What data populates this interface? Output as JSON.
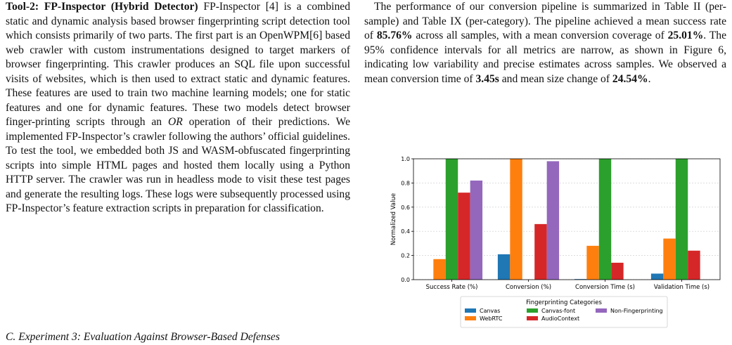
{
  "left": {
    "tool_heading": "Tool-2: FP-Inspector (Hybrid Detector)",
    "p1_a": " FP-Inspector [4] is a combined static and dynamic analysis based browser fingerprinting script detection tool which consists primarily of two parts. The first part is an OpenWPM[6] based web crawler with custom instrumentations designed to target markers of browser fingerprinting. This crawler produces an SQL file upon successful visits of websites, which is then used to extract static and dynamic features. These features are used to train two machine learning models; one for static features and one for dynamic features. These two models detect browser finger-printing scripts through an ",
    "p1_or": "OR",
    "p1_b": " operation of their predictions. We implemented FP-Inspector’s crawler following the authors’ official guidelines. To test the tool, we embedded both JS and WASM-obfuscated fingerprinting scripts into simple HTML pages and hosted them locally using a Python HTTP server. The crawler was run in headless mode to visit these test pages and generate the resulting logs. These logs were subsequently processed using FP-Inspector’s feature extraction scripts in preparation for classification.",
    "subsection": "C.  Experiment 3: Evaluation Against Browser-Based Defenses"
  },
  "right": {
    "t1": "The performance of our conversion pipeline is summarized in Table II (per-sample) and  Table IX (per-category). The pipeline achieved a mean success rate of ",
    "b1": "85.76%",
    "t2": " across all samples, with a mean conversion coverage of ",
    "b2": "25.01%",
    "t3": ". The 95% confidence intervals for all metrics are narrow, as shown in Figure 6, indicating low variability and precise estimates across samples. We observed a mean conversion time of ",
    "b3": "3.45s",
    "t4": " and mean size change of ",
    "b4": "24.54%",
    "t5": "."
  },
  "chart_data": {
    "type": "bar",
    "ylabel": "Normalized Value",
    "ylim": [
      0,
      1.0
    ],
    "yticks": [
      "0.0",
      "0.2",
      "0.4",
      "0.6",
      "0.8",
      "1.0"
    ],
    "grid": true,
    "categories": [
      "Success Rate (%)",
      "Conversion (%)",
      "Conversion Time (s)",
      "Validation Time (s)"
    ],
    "series": [
      {
        "name": "Canvas",
        "color": "#1f77b4",
        "values": [
          0.0,
          0.21,
          0.005,
          0.05
        ]
      },
      {
        "name": "WebRTC",
        "color": "#ff7f0e",
        "values": [
          0.17,
          1.0,
          0.28,
          0.34
        ]
      },
      {
        "name": "Canvas-font",
        "color": "#2ca02c",
        "values": [
          1.0,
          0.0,
          1.0,
          1.0
        ]
      },
      {
        "name": "AudioContext",
        "color": "#d62728",
        "values": [
          0.72,
          0.46,
          0.14,
          0.24
        ]
      },
      {
        "name": "Non-Fingerprinting",
        "color": "#9467bd",
        "values": [
          0.82,
          0.98,
          0.0,
          0.0
        ]
      }
    ],
    "legend_title": "Fingerprinting Categories",
    "legend_placement": "bottom-center"
  }
}
